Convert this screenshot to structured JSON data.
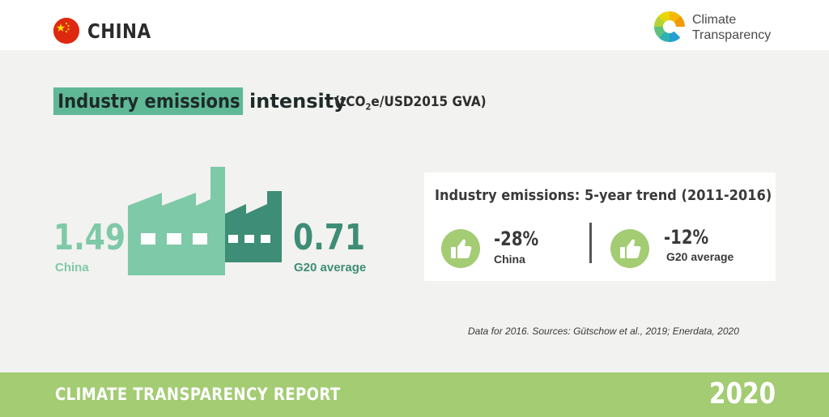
{
  "header": {
    "flag_icon": "china-flag-icon",
    "country": "CHINA",
    "logo": {
      "icon": "climate-transparency-logo-icon",
      "line1": "Climate",
      "line2": "Transparency"
    }
  },
  "title": {
    "highlight": "Industry emissions",
    "rest": "intensity",
    "unit_prefix": "(tCO",
    "unit_sub": "2",
    "unit_suffix": "e/USD2015 GVA)"
  },
  "factory_icon": "factory-icon",
  "china": {
    "value": "1.49",
    "label": "China",
    "color": "#7ec9a8"
  },
  "g20": {
    "value": "0.71",
    "label": "G20 average",
    "color": "#3e8d76"
  },
  "trend": {
    "title": "Industry emissions: 5-year trend (2011-2016)",
    "items": [
      {
        "icon": "thumbs-up-icon",
        "value": "-28%",
        "label": "China"
      },
      {
        "icon": "thumbs-up-icon",
        "value": "-12%",
        "label": "G20 average"
      }
    ],
    "accent": "#a3cc73"
  },
  "source": "Data for 2016. Sources: Gütschow et al., 2019; Enerdata, 2020",
  "footer": {
    "report": "CLIMATE TRANSPARENCY REPORT",
    "year": "2020",
    "color": "#a3cc73"
  }
}
